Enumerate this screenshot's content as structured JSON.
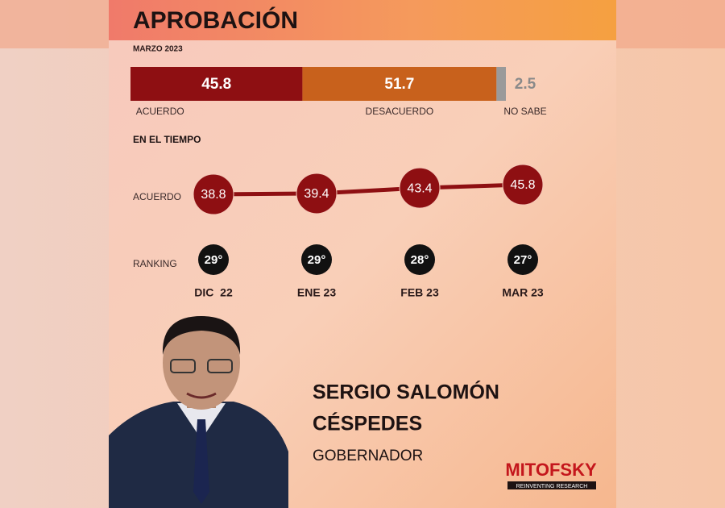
{
  "title": "APROBACIÓN",
  "subtitle": "MARZO 2023",
  "chart_data": [
    {
      "type": "stacked-bar",
      "series": [
        {
          "name": "ACUERDO",
          "color": "#8e0f12",
          "values": [
            45.8
          ]
        },
        {
          "name": "DESACUERDO",
          "color": "#c8611c",
          "values": [
            51.7
          ]
        },
        {
          "name": "NO SABE",
          "color": "#9a9a9a",
          "values": [
            2.5
          ]
        }
      ]
    },
    {
      "type": "line",
      "title": "EN EL TIEMPO",
      "categories": [
        "DIC  22",
        "ENE 23",
        "FEB 23",
        "MAR 23"
      ],
      "series": [
        {
          "name": "ACUERDO",
          "color": "#8e0f12",
          "values": [
            38.8,
            39.4,
            43.4,
            45.8
          ]
        }
      ]
    }
  ],
  "ranking": {
    "label": "RANKING",
    "values": [
      "29°",
      "29°",
      "28°",
      "27°"
    ]
  },
  "person": {
    "name_line1": "SERGIO SALOMÓN",
    "name_line2": "CÉSPEDES",
    "role": "GOBERNADOR"
  },
  "brand": {
    "name": "MITOFSKY",
    "tagline": "REINVENTING RESEARCH"
  }
}
